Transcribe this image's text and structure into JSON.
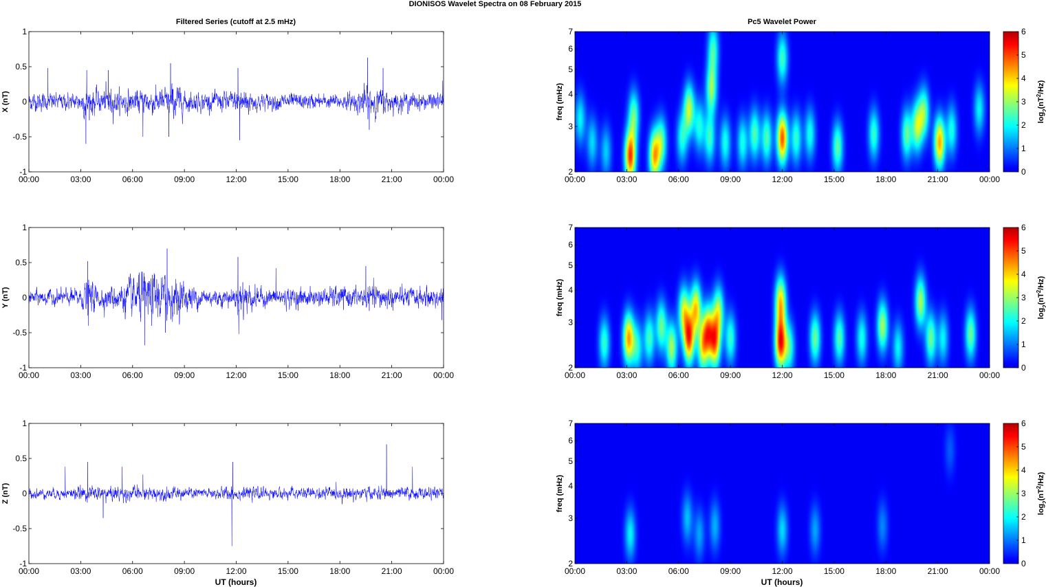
{
  "figure": {
    "title": "DIONISOS Wavelet Spectra on 08 February  2015",
    "left_column_title": "Filtered Series (cutoff at 2.5 mHz)",
    "right_column_title": "Pc5 Wavelet Power",
    "xlabel": "UT (hours)"
  },
  "chart_data": [
    {
      "type": "line",
      "component": "X",
      "ylabel": "X (nT)",
      "ylim": [
        -1,
        1
      ],
      "yticks": [
        "1",
        "0.5",
        "0",
        "-0.5",
        "-1"
      ],
      "xlim_hours": [
        0,
        24
      ],
      "xticks": [
        "00:00",
        "03:00",
        "06:00",
        "09:00",
        "12:00",
        "15:00",
        "18:00",
        "21:00",
        "00:00"
      ],
      "color": "#0000ff",
      "envelope_hours": [
        0,
        1,
        2,
        3,
        3.3,
        4,
        4.6,
        5,
        6,
        7,
        8,
        8.5,
        9,
        10,
        11,
        12,
        12.3,
        13,
        14,
        15,
        16,
        17,
        18,
        19,
        19.5,
        20,
        21,
        22,
        23,
        24
      ],
      "envelope_amplitude_nT": [
        0.18,
        0.16,
        0.15,
        0.17,
        0.32,
        0.2,
        0.28,
        0.22,
        0.2,
        0.24,
        0.25,
        0.35,
        0.2,
        0.16,
        0.18,
        0.2,
        0.35,
        0.16,
        0.15,
        0.15,
        0.14,
        0.13,
        0.14,
        0.18,
        0.3,
        0.26,
        0.18,
        0.16,
        0.15,
        0.15
      ],
      "spikes": [
        [
          1.1,
          0.48
        ],
        [
          3.3,
          -0.6
        ],
        [
          3.35,
          0.45
        ],
        [
          4.6,
          0.45
        ],
        [
          6.6,
          -0.5
        ],
        [
          8.2,
          0.55
        ],
        [
          8.1,
          -0.5
        ],
        [
          12.2,
          -0.55
        ],
        [
          12.1,
          0.48
        ],
        [
          19.6,
          0.63
        ],
        [
          19.7,
          -0.4
        ],
        [
          20.5,
          0.48
        ],
        [
          23.95,
          0.3
        ]
      ]
    },
    {
      "type": "line",
      "component": "Y",
      "ylabel": "Y (nT)",
      "ylim": [
        -1,
        1
      ],
      "yticks": [
        "1",
        "0.5",
        "0",
        "-0.5",
        "-1"
      ],
      "xlim_hours": [
        0,
        24
      ],
      "xticks": [
        "00:00",
        "03:00",
        "06:00",
        "09:00",
        "12:00",
        "15:00",
        "18:00",
        "21:00",
        "00:00"
      ],
      "color": "#0000ff",
      "envelope_hours": [
        0,
        1,
        2,
        3,
        3.4,
        4,
        5,
        6,
        6.5,
        7,
        7.5,
        8,
        8.5,
        9,
        10,
        11,
        12,
        12.2,
        13,
        14,
        15,
        16,
        17,
        18,
        19,
        20,
        21,
        22,
        23,
        24
      ],
      "envelope_amplitude_nT": [
        0.14,
        0.14,
        0.15,
        0.17,
        0.35,
        0.2,
        0.22,
        0.38,
        0.45,
        0.42,
        0.45,
        0.4,
        0.35,
        0.28,
        0.18,
        0.16,
        0.18,
        0.42,
        0.2,
        0.16,
        0.18,
        0.17,
        0.16,
        0.2,
        0.18,
        0.24,
        0.2,
        0.18,
        0.18,
        0.22
      ],
      "spikes": [
        [
          3.4,
          0.52
        ],
        [
          3.45,
          -0.4
        ],
        [
          6.7,
          -0.68
        ],
        [
          8.0,
          0.7
        ],
        [
          7.9,
          -0.5
        ],
        [
          12.1,
          0.58
        ],
        [
          12.15,
          -0.52
        ],
        [
          14.3,
          0.42
        ],
        [
          19.5,
          0.45
        ],
        [
          23.9,
          -0.32
        ]
      ]
    },
    {
      "type": "line",
      "component": "Z",
      "ylabel": "Z (nT)",
      "ylim": [
        -1,
        1
      ],
      "yticks": [
        "1",
        "0.5",
        "0",
        "-0.5",
        "-1"
      ],
      "xlim_hours": [
        0,
        24
      ],
      "xticks": [
        "00:00",
        "03:00",
        "06:00",
        "09:00",
        "12:00",
        "15:00",
        "18:00",
        "21:00",
        "00:00"
      ],
      "color": "#0000ff",
      "envelope_hours": [
        0,
        1,
        2,
        3,
        4,
        5,
        6,
        7,
        8,
        9,
        10,
        11,
        11.8,
        12,
        13,
        14,
        15,
        16,
        17,
        18,
        19,
        20,
        21,
        22,
        23,
        24
      ],
      "envelope_amplitude_nT": [
        0.1,
        0.09,
        0.1,
        0.12,
        0.13,
        0.14,
        0.13,
        0.12,
        0.13,
        0.11,
        0.1,
        0.1,
        0.15,
        0.12,
        0.11,
        0.1,
        0.1,
        0.11,
        0.11,
        0.12,
        0.12,
        0.12,
        0.12,
        0.11,
        0.11,
        0.1
      ],
      "spikes": [
        [
          2.1,
          0.38
        ],
        [
          3.4,
          0.45
        ],
        [
          4.3,
          -0.35
        ],
        [
          5.4,
          0.38
        ],
        [
          6.6,
          0.27
        ],
        [
          11.8,
          0.45
        ],
        [
          11.75,
          -0.75
        ],
        [
          20.7,
          0.7
        ],
        [
          22.2,
          0.38
        ]
      ]
    },
    {
      "type": "heatmap",
      "component": "X",
      "ylabel": "freq (mHz)",
      "yscale": "log",
      "ylim_mHz": [
        2,
        7
      ],
      "yticks": [
        "7",
        "6",
        "5",
        "4",
        "3",
        "2"
      ],
      "xlim_hours": [
        0,
        24
      ],
      "xticks": [
        "00:00",
        "03:00",
        "06:00",
        "09:00",
        "12:00",
        "15:00",
        "18:00",
        "21:00",
        "00:00"
      ],
      "colorbar_label": "log2(nT^2/Hz)",
      "colorbar_ticks": [
        "6",
        "5",
        "4",
        "3",
        "2",
        "1",
        "0"
      ],
      "clim": [
        0,
        6
      ],
      "blobs_hours_mHz_power": [
        [
          0.3,
          3.2,
          1.8
        ],
        [
          1.0,
          2.6,
          1.6
        ],
        [
          1.8,
          2.4,
          1.5
        ],
        [
          3.2,
          2.3,
          5.0
        ],
        [
          3.4,
          3.3,
          2.5
        ],
        [
          4.6,
          2.3,
          4.0
        ],
        [
          5.0,
          2.6,
          2.5
        ],
        [
          6.2,
          2.7,
          2.0
        ],
        [
          6.6,
          3.5,
          3.2
        ],
        [
          7.2,
          3.0,
          2.0
        ],
        [
          7.8,
          2.7,
          2.2
        ],
        [
          7.9,
          4.2,
          2.8
        ],
        [
          8.0,
          6.0,
          2.2
        ],
        [
          8.7,
          2.6,
          2.0
        ],
        [
          9.7,
          2.6,
          2.0
        ],
        [
          10.4,
          2.8,
          2.4
        ],
        [
          11.1,
          2.7,
          2.4
        ],
        [
          12.0,
          2.7,
          4.8
        ],
        [
          12.0,
          5.5,
          2.3
        ],
        [
          12.8,
          2.7,
          2.2
        ],
        [
          13.6,
          2.8,
          2.0
        ],
        [
          15.2,
          2.5,
          2.5
        ],
        [
          17.3,
          2.8,
          2.2
        ],
        [
          19.2,
          2.8,
          2.5
        ],
        [
          19.8,
          3.0,
          3.0
        ],
        [
          20.2,
          3.4,
          2.6
        ],
        [
          21.1,
          2.6,
          4.2
        ],
        [
          21.8,
          2.9,
          2.0
        ],
        [
          23.4,
          3.5,
          1.8
        ]
      ]
    },
    {
      "type": "heatmap",
      "component": "Y",
      "ylabel": "freq (mHz)",
      "yscale": "log",
      "ylim_mHz": [
        2,
        7
      ],
      "yticks": [
        "7",
        "6",
        "5",
        "4",
        "3",
        "2"
      ],
      "xlim_hours": [
        0,
        24
      ],
      "xticks": [
        "00:00",
        "03:00",
        "06:00",
        "09:00",
        "12:00",
        "15:00",
        "18:00",
        "21:00",
        "00:00"
      ],
      "colorbar_label": "log2(nT^2/Hz)",
      "colorbar_ticks": [
        "6",
        "5",
        "4",
        "3",
        "2",
        "1",
        "0"
      ],
      "clim": [
        0,
        6
      ],
      "blobs_hours_mHz_power": [
        [
          1.7,
          2.5,
          2.2
        ],
        [
          3.1,
          2.6,
          4.2
        ],
        [
          3.6,
          2.4,
          2.0
        ],
        [
          4.3,
          2.6,
          2.3
        ],
        [
          5.0,
          2.9,
          2.6
        ],
        [
          5.6,
          2.4,
          3.0
        ],
        [
          6.3,
          3.3,
          3.2
        ],
        [
          6.6,
          2.6,
          4.8
        ],
        [
          7.0,
          3.4,
          3.8
        ],
        [
          7.4,
          2.4,
          3.2
        ],
        [
          7.7,
          2.8,
          3.8
        ],
        [
          8.1,
          2.5,
          4.2
        ],
        [
          8.3,
          3.3,
          3.0
        ],
        [
          9.0,
          2.6,
          2.2
        ],
        [
          11.9,
          2.5,
          5.2
        ],
        [
          11.9,
          3.6,
          3.8
        ],
        [
          12.4,
          2.4,
          2.2
        ],
        [
          13.9,
          2.6,
          2.6
        ],
        [
          15.3,
          2.6,
          2.4
        ],
        [
          16.6,
          2.6,
          2.0
        ],
        [
          17.8,
          2.9,
          3.0
        ],
        [
          18.7,
          2.4,
          1.8
        ],
        [
          20.0,
          3.6,
          3.0
        ],
        [
          20.6,
          2.6,
          2.6
        ],
        [
          21.3,
          2.6,
          1.8
        ],
        [
          22.9,
          2.7,
          2.6
        ]
      ]
    },
    {
      "type": "heatmap",
      "component": "Z",
      "ylabel": "freq (mHz)",
      "yscale": "log",
      "ylim_mHz": [
        2,
        7
      ],
      "yticks": [
        "7",
        "6",
        "5",
        "4",
        "3",
        "2"
      ],
      "xlim_hours": [
        0,
        24
      ],
      "xticks": [
        "00:00",
        "03:00",
        "06:00",
        "09:00",
        "12:00",
        "15:00",
        "18:00",
        "21:00",
        "00:00"
      ],
      "colorbar_label": "log2(nT^2/Hz)",
      "colorbar_ticks": [
        "6",
        "5",
        "4",
        "3",
        "2",
        "1",
        "0"
      ],
      "clim": [
        0,
        6
      ],
      "blobs_hours_mHz_power": [
        [
          3.2,
          2.6,
          1.8
        ],
        [
          6.5,
          3.0,
          1.4
        ],
        [
          7.2,
          2.6,
          1.2
        ],
        [
          8.1,
          2.8,
          1.3
        ],
        [
          12.0,
          2.7,
          1.6
        ],
        [
          13.9,
          2.7,
          1.2
        ],
        [
          17.8,
          2.8,
          1.0
        ],
        [
          21.7,
          5.5,
          0.7
        ]
      ]
    }
  ],
  "colormap": {
    "name": "jet",
    "stops": [
      "#00008f",
      "#0000ff",
      "#00ffff",
      "#ffff00",
      "#ff0000",
      "#800000"
    ]
  }
}
